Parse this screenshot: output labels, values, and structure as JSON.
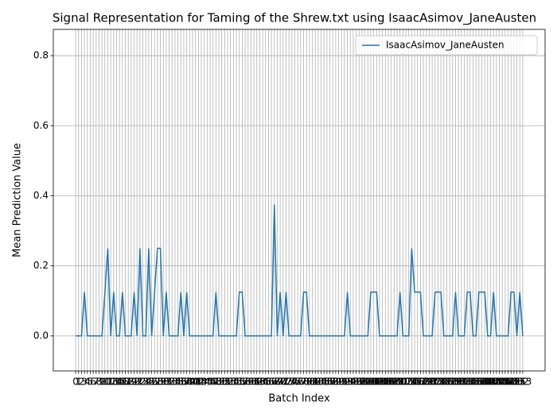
{
  "chart_data": {
    "type": "line",
    "title": "Signal Representation for Taming of the Shrew.txt using IsaacAsimov_JaneAusten",
    "xlabel": "Batch Index",
    "ylabel": "Mean Prediction Value",
    "x": [
      0,
      1,
      2,
      3,
      4,
      5,
      6,
      7,
      8,
      9,
      10,
      11,
      12,
      13,
      14,
      15,
      16,
      17,
      18,
      19,
      20,
      21,
      22,
      23,
      24,
      25,
      26,
      27,
      28,
      29,
      30,
      31,
      32,
      33,
      34,
      35,
      36,
      37,
      38,
      39,
      40,
      41,
      42,
      43,
      44,
      45,
      46,
      47,
      48,
      49,
      50,
      51,
      52,
      53,
      54,
      55,
      56,
      57,
      58,
      59,
      60,
      61,
      62,
      63,
      64,
      65,
      66,
      67,
      68,
      69,
      70,
      71,
      72,
      73,
      74,
      75,
      76,
      77,
      78,
      79,
      80,
      81,
      82,
      83,
      84,
      85,
      86,
      87,
      88,
      89,
      90,
      91,
      92,
      93,
      94,
      95,
      96,
      97,
      98,
      99,
      100,
      101,
      102,
      103,
      104,
      105,
      106,
      107,
      108,
      109,
      110,
      111,
      112,
      113,
      114,
      115,
      116,
      117,
      118,
      119,
      120,
      121,
      122,
      123,
      124,
      125,
      126,
      127,
      128,
      129,
      130,
      131,
      132,
      133,
      134,
      135,
      136,
      137,
      138,
      139,
      140,
      141,
      142,
      143,
      144,
      145,
      146,
      147,
      148,
      149,
      150,
      151,
      152,
      153
    ],
    "series": [
      {
        "name": "IsaacAsimov_JaneAusten",
        "color": "#1f77b4",
        "values": [
          0,
          0,
          0,
          0.125,
          0,
          0,
          0,
          0,
          0,
          0,
          0.125,
          0.25,
          0,
          0.125,
          0,
          0,
          0.125,
          0,
          0,
          0,
          0.125,
          0,
          0.25,
          0,
          0,
          0.25,
          0,
          0.125,
          0.25,
          0.25,
          0,
          0.125,
          0,
          0,
          0,
          0,
          0.125,
          0,
          0.125,
          0,
          0,
          0,
          0,
          0,
          0,
          0,
          0,
          0,
          0.125,
          0,
          0,
          0,
          0,
          0,
          0,
          0,
          0.125,
          0.125,
          0,
          0,
          0,
          0,
          0,
          0,
          0,
          0,
          0,
          0,
          0.375,
          0,
          0.125,
          0,
          0.125,
          0,
          0,
          0,
          0,
          0,
          0.125,
          0.125,
          0,
          0,
          0,
          0,
          0,
          0,
          0,
          0,
          0,
          0,
          0,
          0,
          0,
          0.125,
          0,
          0,
          0,
          0,
          0,
          0,
          0,
          0.125,
          0.125,
          0.125,
          0,
          0,
          0,
          0,
          0,
          0,
          0,
          0.125,
          0,
          0,
          0,
          0.25,
          0.125,
          0.125,
          0.125,
          0,
          0,
          0,
          0,
          0.125,
          0.125,
          0.125,
          0,
          0,
          0,
          0,
          0.125,
          0,
          0,
          0,
          0.125,
          0.125,
          0,
          0,
          0.125,
          0.125,
          0.125,
          0,
          0,
          0.125,
          0,
          0,
          0,
          0,
          0,
          0.125,
          0.125,
          0,
          0.125,
          0
        ]
      }
    ],
    "xlim": [
      -7.65,
      160.65
    ],
    "xticks": [
      0,
      1,
      2,
      3,
      4,
      5,
      6,
      7,
      8,
      9,
      10,
      11,
      12,
      13,
      14,
      15,
      16,
      17,
      18,
      19,
      20,
      21,
      22,
      23,
      24,
      25,
      26,
      27,
      28,
      29,
      30,
      31,
      32,
      33,
      34,
      35,
      36,
      37,
      38,
      39,
      40,
      41,
      42,
      43,
      44,
      45,
      46,
      47,
      48,
      49,
      50,
      51,
      52,
      53,
      54,
      55,
      56,
      57,
      58,
      59,
      60,
      61,
      62,
      63,
      64,
      65,
      66,
      67,
      68,
      69,
      70,
      71,
      72,
      73,
      74,
      75,
      76,
      77,
      78,
      79,
      80,
      81,
      82,
      83,
      84,
      85,
      86,
      87,
      88,
      89,
      90,
      91,
      92,
      93,
      94,
      95,
      96,
      97,
      98,
      99,
      100,
      101,
      102,
      103,
      104,
      105,
      106,
      107,
      108,
      109,
      110,
      111,
      112,
      113,
      114,
      115,
      116,
      117,
      118,
      119,
      120,
      121,
      122,
      123,
      124,
      125,
      126,
      127,
      128,
      129,
      130,
      131,
      132,
      133,
      134,
      135,
      136,
      137,
      138,
      139,
      140,
      141,
      142,
      143,
      144,
      145,
      146,
      147,
      148,
      149,
      150,
      151,
      152,
      153
    ],
    "ylim": [
      -0.1,
      0.875
    ],
    "yticks": [
      {
        "value": 0,
        "label": "0.0"
      },
      0.2,
      0.4,
      0.6,
      0.8
    ],
    "grid": true,
    "legend": "upper right"
  }
}
